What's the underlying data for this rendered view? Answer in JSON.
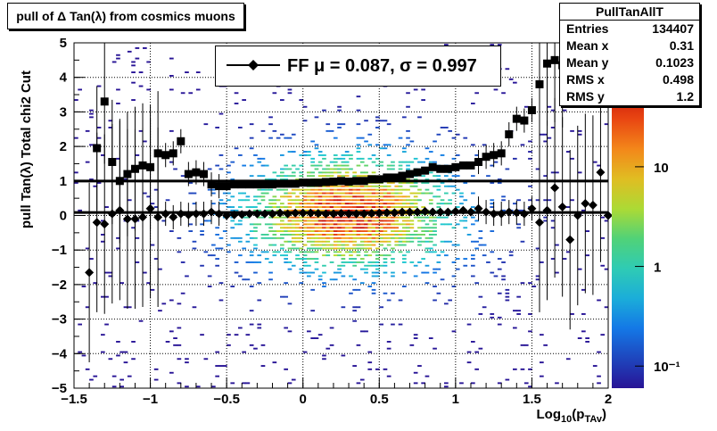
{
  "chart_data": {
    "type": "scatter",
    "title": "pull of Δ Tan(λ) from cosmics muons",
    "xlabel": "Log10(pTAv)",
    "ylabel": "pull Tan(λ)  Total chi2 Cut",
    "xlim": [
      -1.5,
      2
    ],
    "ylim": [
      -5,
      5
    ],
    "x_ticks": [
      "−1.5",
      "−1",
      "−0.5",
      "0",
      "0.5",
      "1",
      "1.5",
      "2"
    ],
    "x_tick_values": [
      -1.5,
      -1,
      -0.5,
      0,
      0.5,
      1,
      1.5,
      2
    ],
    "y_ticks": [
      "−5",
      "−4",
      "−3",
      "−2",
      "−1",
      "0",
      "1",
      "2",
      "3",
      "4",
      "5"
    ],
    "y_tick_values": [
      -5,
      -4,
      -3,
      -2,
      -1,
      0,
      1,
      2,
      3,
      4,
      5
    ],
    "grid": true,
    "colorbar": {
      "scale": "log",
      "range": [
        0.06,
        60
      ],
      "tick_values": [
        0.1,
        1,
        10
      ],
      "labels": [
        "10⁻¹",
        "1",
        "10"
      ]
    },
    "fit_lines": [
      {
        "name": "mean",
        "y": 0.087
      },
      {
        "name": "sigma",
        "y": 0.997
      }
    ],
    "legend": {
      "label": "FF μ =  0.087, σ =   0.997",
      "placement": "top-center"
    },
    "series": [
      {
        "name": "mean",
        "marker": "diamond",
        "x": [
          -1.4,
          -1.35,
          -1.3,
          -1.25,
          -1.2,
          -1.15,
          -1.1,
          -1.05,
          -1.0,
          -0.95,
          -0.9,
          -0.85,
          -0.8,
          -0.75,
          -0.7,
          -0.65,
          -0.6,
          -0.55,
          -0.5,
          -0.45,
          -0.4,
          -0.35,
          -0.3,
          -0.25,
          -0.2,
          -0.15,
          -0.1,
          -0.05,
          0.0,
          0.05,
          0.1,
          0.15,
          0.2,
          0.25,
          0.3,
          0.35,
          0.4,
          0.45,
          0.5,
          0.55,
          0.6,
          0.65,
          0.7,
          0.75,
          0.8,
          0.85,
          0.9,
          0.95,
          1.0,
          1.05,
          1.1,
          1.15,
          1.2,
          1.25,
          1.3,
          1.35,
          1.4,
          1.45,
          1.5,
          1.55,
          1.6,
          1.65,
          1.7,
          1.75,
          1.8,
          1.85,
          1.9,
          1.95,
          2.0
        ],
        "values": [
          -1.65,
          -0.2,
          -0.25,
          0.05,
          0.15,
          -0.1,
          -0.1,
          -0.05,
          0.2,
          -0.05,
          0.05,
          -0.05,
          0.05,
          0.02,
          0.05,
          0.05,
          0.1,
          0.05,
          0.0,
          0.02,
          0.03,
          0.05,
          0.05,
          0.05,
          0.05,
          0.07,
          0.05,
          0.07,
          0.07,
          0.07,
          0.06,
          0.05,
          0.05,
          0.06,
          0.05,
          0.05,
          0.05,
          0.06,
          0.07,
          0.08,
          0.08,
          0.1,
          0.1,
          0.1,
          0.12,
          0.1,
          0.1,
          0.1,
          0.12,
          0.15,
          0.1,
          0.2,
          0.1,
          0.05,
          0.05,
          0.1,
          0.08,
          0.05,
          0.2,
          -0.2,
          0.15,
          0.8,
          0.25,
          -0.7,
          0.0,
          0.35,
          0.3,
          1.25,
          0.0
        ]
      },
      {
        "name": "sigma",
        "marker": "square",
        "x": [
          -1.35,
          -1.3,
          -1.25,
          -1.2,
          -1.15,
          -1.1,
          -1.05,
          -1.0,
          -0.95,
          -0.9,
          -0.85,
          -0.8,
          -0.75,
          -0.7,
          -0.65,
          -0.6,
          -0.55,
          -0.5,
          -0.45,
          -0.4,
          -0.35,
          -0.3,
          -0.25,
          -0.2,
          -0.15,
          -0.1,
          -0.05,
          0.0,
          0.05,
          0.1,
          0.15,
          0.2,
          0.25,
          0.3,
          0.35,
          0.4,
          0.45,
          0.5,
          0.55,
          0.6,
          0.65,
          0.7,
          0.75,
          0.8,
          0.85,
          0.9,
          0.95,
          1.0,
          1.05,
          1.1,
          1.15,
          1.2,
          1.25,
          1.3,
          1.35,
          1.4,
          1.45,
          1.5,
          1.55,
          1.6,
          1.65,
          1.7
        ],
        "values": [
          1.95,
          3.3,
          1.55,
          1.0,
          1.2,
          1.35,
          1.45,
          1.4,
          1.8,
          1.75,
          1.8,
          2.15,
          1.2,
          1.25,
          1.2,
          0.9,
          0.85,
          0.85,
          0.9,
          0.9,
          0.9,
          0.9,
          0.9,
          0.9,
          0.92,
          0.92,
          0.92,
          0.95,
          0.95,
          0.95,
          0.97,
          0.98,
          1.0,
          0.98,
          1.0,
          1.0,
          1.05,
          1.05,
          1.1,
          1.1,
          1.15,
          1.2,
          1.25,
          1.3,
          1.4,
          1.35,
          1.35,
          1.4,
          1.45,
          1.45,
          1.55,
          1.7,
          1.75,
          1.8,
          2.35,
          2.8,
          2.75,
          3.05,
          3.8,
          4.4,
          4.5,
          4.35
        ]
      }
    ],
    "stats_box": {
      "title": "PullTanAllT",
      "rows": [
        {
          "label": "Entries",
          "value": "134407"
        },
        {
          "label": "Mean x",
          "value": "0.31"
        },
        {
          "label": "Mean y",
          "value": "0.1023"
        },
        {
          "label": "RMS x",
          "value": "0.498"
        },
        {
          "label": "RMS y",
          "value": "1.2"
        }
      ]
    },
    "colors": {
      "marker": "#000000",
      "grid": "#000000"
    }
  },
  "title_box": {
    "text": "pull of Δ Tan(λ) from cosmics muons"
  },
  "axis": {
    "ylabel": "pull Tan(λ)  Total chi2 Cut",
    "xlabel_main": "Log",
    "xlabel_sub1": "10",
    "xlabel_mid": "(p",
    "xlabel_sub2": "TAv",
    "xlabel_end": ")"
  }
}
